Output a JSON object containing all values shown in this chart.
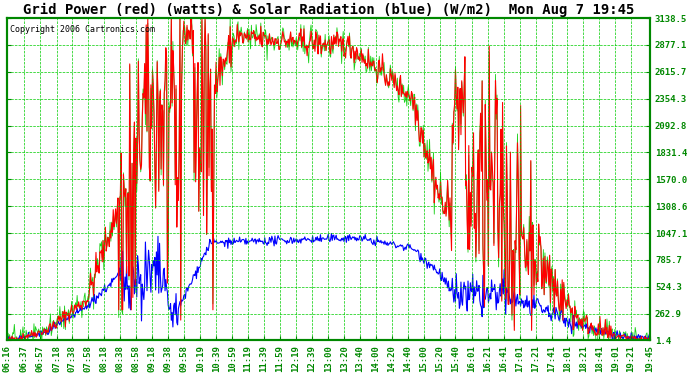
{
  "title": "Grid Power (red) (watts) & Solar Radiation (blue) (W/m2)  Mon Aug 7 19:45",
  "copyright": "Copyright 2006 Cartronics.com",
  "bg_color": "#ffffff",
  "plot_bg_color": "#ffffff",
  "title_color": "#000000",
  "grid_color": "#00cc00",
  "border_color": "#008800",
  "ytick_labels": [
    "1.4",
    "262.9",
    "524.3",
    "785.7",
    "1047.1",
    "1308.6",
    "1570.0",
    "1831.4",
    "2092.8",
    "2354.3",
    "2615.7",
    "2877.1",
    "3138.5"
  ],
  "ytick_values": [
    1.4,
    262.9,
    524.3,
    785.7,
    1047.1,
    1308.6,
    1570.0,
    1831.4,
    2092.8,
    2354.3,
    2615.7,
    2877.1,
    3138.5
  ],
  "ymin": 1.4,
  "ymax": 3138.5,
  "xtick_labels": [
    "06:16",
    "06:37",
    "06:57",
    "07:18",
    "07:38",
    "07:58",
    "08:18",
    "08:38",
    "08:58",
    "09:18",
    "09:38",
    "09:58",
    "10:19",
    "10:39",
    "10:59",
    "11:19",
    "11:39",
    "11:59",
    "12:19",
    "12:39",
    "13:00",
    "13:20",
    "13:40",
    "14:00",
    "14:20",
    "14:40",
    "15:00",
    "15:20",
    "15:40",
    "16:01",
    "16:21",
    "16:41",
    "17:01",
    "17:21",
    "17:41",
    "18:01",
    "18:21",
    "18:41",
    "19:01",
    "19:21",
    "19:45"
  ],
  "red_line_color": "#ff0000",
  "blue_line_color": "#0000ff",
  "green_line_color": "#00cc00",
  "linewidth": 0.8,
  "title_fontsize": 10,
  "tick_fontsize": 6.5,
  "copyright_fontsize": 6
}
